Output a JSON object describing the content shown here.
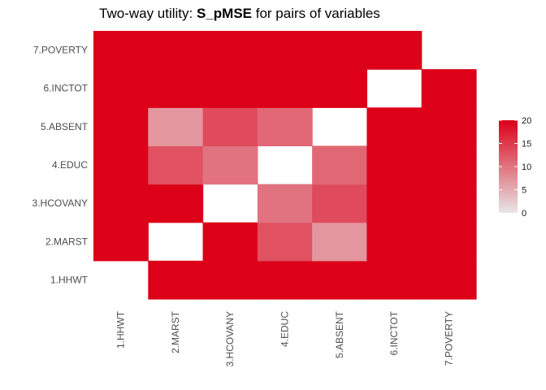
{
  "chart_data": {
    "type": "heatmap",
    "title": {
      "prefix": "Two-way utility: ",
      "metric": "S_pMSE",
      "suffix": " for pairs of variables"
    },
    "xlabel": "",
    "ylabel": "",
    "variables": [
      "1.HHWT",
      "2.MARST",
      "3.HCOVANY",
      "4.EDUC",
      "5.ABSENT",
      "6.INCTOT",
      "7.POVERTY"
    ],
    "cells": [
      {
        "x": "1.HHWT",
        "y": "2.MARST",
        "value": 20
      },
      {
        "x": "1.HHWT",
        "y": "3.HCOVANY",
        "value": 20
      },
      {
        "x": "1.HHWT",
        "y": "4.EDUC",
        "value": 20
      },
      {
        "x": "1.HHWT",
        "y": "5.ABSENT",
        "value": 20
      },
      {
        "x": "1.HHWT",
        "y": "6.INCTOT",
        "value": 20
      },
      {
        "x": "1.HHWT",
        "y": "7.POVERTY",
        "value": 20
      },
      {
        "x": "2.MARST",
        "y": "1.HHWT",
        "value": 20
      },
      {
        "x": "2.MARST",
        "y": "3.HCOVANY",
        "value": 20
      },
      {
        "x": "2.MARST",
        "y": "4.EDUC",
        "value": 13
      },
      {
        "x": "2.MARST",
        "y": "5.ABSENT",
        "value": 7
      },
      {
        "x": "2.MARST",
        "y": "6.INCTOT",
        "value": 20
      },
      {
        "x": "2.MARST",
        "y": "7.POVERTY",
        "value": 20
      },
      {
        "x": "3.HCOVANY",
        "y": "1.HHWT",
        "value": 20
      },
      {
        "x": "3.HCOVANY",
        "y": "2.MARST",
        "value": 20
      },
      {
        "x": "3.HCOVANY",
        "y": "4.EDUC",
        "value": 10
      },
      {
        "x": "3.HCOVANY",
        "y": "5.ABSENT",
        "value": 13.5
      },
      {
        "x": "3.HCOVANY",
        "y": "6.INCTOT",
        "value": 20
      },
      {
        "x": "3.HCOVANY",
        "y": "7.POVERTY",
        "value": 20
      },
      {
        "x": "4.EDUC",
        "y": "1.HHWT",
        "value": 20
      },
      {
        "x": "4.EDUC",
        "y": "2.MARST",
        "value": 13
      },
      {
        "x": "4.EDUC",
        "y": "3.HCOVANY",
        "value": 10
      },
      {
        "x": "4.EDUC",
        "y": "5.ABSENT",
        "value": 11
      },
      {
        "x": "4.EDUC",
        "y": "6.INCTOT",
        "value": 20
      },
      {
        "x": "4.EDUC",
        "y": "7.POVERTY",
        "value": 20
      },
      {
        "x": "5.ABSENT",
        "y": "1.HHWT",
        "value": 20
      },
      {
        "x": "5.ABSENT",
        "y": "2.MARST",
        "value": 7
      },
      {
        "x": "5.ABSENT",
        "y": "3.HCOVANY",
        "value": 13.5
      },
      {
        "x": "5.ABSENT",
        "y": "4.EDUC",
        "value": 11
      },
      {
        "x": "5.ABSENT",
        "y": "6.INCTOT",
        "value": 20
      },
      {
        "x": "5.ABSENT",
        "y": "7.POVERTY",
        "value": 20
      },
      {
        "x": "6.INCTOT",
        "y": "1.HHWT",
        "value": 20
      },
      {
        "x": "6.INCTOT",
        "y": "2.MARST",
        "value": 20
      },
      {
        "x": "6.INCTOT",
        "y": "3.HCOVANY",
        "value": 20
      },
      {
        "x": "6.INCTOT",
        "y": "4.EDUC",
        "value": 20
      },
      {
        "x": "6.INCTOT",
        "y": "5.ABSENT",
        "value": 20
      },
      {
        "x": "6.INCTOT",
        "y": "7.POVERTY",
        "value": 20
      },
      {
        "x": "7.POVERTY",
        "y": "1.HHWT",
        "value": 20
      },
      {
        "x": "7.POVERTY",
        "y": "2.MARST",
        "value": 20
      },
      {
        "x": "7.POVERTY",
        "y": "3.HCOVANY",
        "value": 20
      },
      {
        "x": "7.POVERTY",
        "y": "4.EDUC",
        "value": 20
      },
      {
        "x": "7.POVERTY",
        "y": "5.ABSENT",
        "value": 20
      },
      {
        "x": "7.POVERTY",
        "y": "6.INCTOT",
        "value": 20
      }
    ],
    "colorbar": {
      "min": 0,
      "max": 20,
      "ticks": [
        0,
        5,
        10,
        15,
        20
      ],
      "low_color": "#e6e6e6",
      "high_color": "#dc0019"
    },
    "grid": false,
    "legend_placement": "right"
  }
}
